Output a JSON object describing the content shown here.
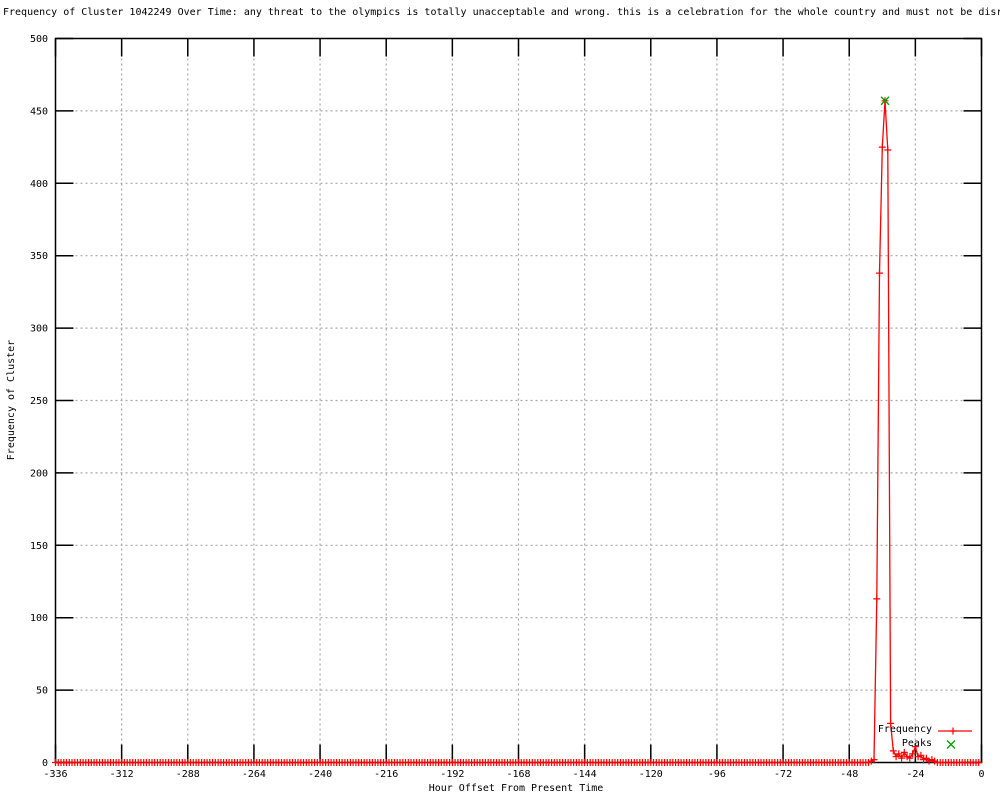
{
  "colors": {
    "background": "#ffffff",
    "border": "#000000",
    "grid": "#a8a8a8",
    "frequency": "#ff0000",
    "peaks": "#00a000"
  },
  "chart_data": {
    "type": "line",
    "title": "Frequency of Cluster 1042249 Over Time: any threat to the olympics is totally unacceptable and wrong. this is a celebration for the whole country and must not be disr",
    "xlabel": "Hour Offset From Present Time",
    "ylabel": "Frequency of Cluster",
    "xlim": [
      -336,
      0
    ],
    "ylim": [
      0,
      500
    ],
    "x_ticks": [
      -336,
      -312,
      -288,
      -264,
      -240,
      -216,
      -192,
      -168,
      -144,
      -120,
      -96,
      -72,
      -48,
      -24,
      0
    ],
    "y_ticks": [
      0,
      50,
      100,
      150,
      200,
      250,
      300,
      350,
      400,
      450,
      500
    ],
    "grid": true,
    "legend_position": "bottom-right-inside",
    "series": [
      {
        "name": "Frequency",
        "color": "#ff0000",
        "style": "linespoints",
        "marker": "plus",
        "x_start": -336,
        "x_end": -1,
        "default_value": 0,
        "points_nonzero": {
          "-40": 1,
          "-39": 2,
          "-38": 113,
          "-37": 338,
          "-36": 425,
          "-35": 457,
          "-34": 423,
          "-33": 27,
          "-32": 8,
          "-31": 4,
          "-30": 6,
          "-29": 3,
          "-28": 7,
          "-27": 4,
          "-26": 3,
          "-25": 6,
          "-24": 11,
          "-23": 4,
          "-22": 5,
          "-21": 2,
          "-20": 3,
          "-19": 1,
          "-18": 2,
          "-17": 1
        }
      },
      {
        "name": "Peaks",
        "color": "#00a000",
        "style": "points",
        "marker": "cross",
        "points": [
          {
            "x": -35,
            "y": 457
          }
        ]
      }
    ]
  }
}
